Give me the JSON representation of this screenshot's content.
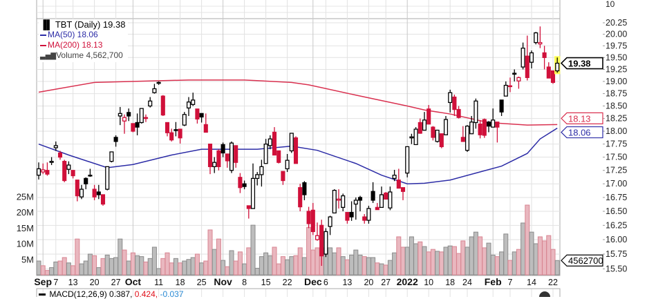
{
  "legend": {
    "title": "TBT (Daily) 19.38",
    "ma50": "MA(50) 18.06",
    "ma200": "MA(200) 18.13",
    "volume": "Volume 4,562,700"
  },
  "macd": {
    "label": "MACD(12,26,9) 0.387,",
    "signal": "0.424,",
    "hist": "-0.037"
  },
  "upper_panel_label": "10",
  "tags": {
    "price": "19.38",
    "ma50": "18.06",
    "ma200": "18.13",
    "volume": "4562700"
  },
  "colors": {
    "up": "#000000",
    "down": "#d0103a",
    "ma50": "#2b2ba6",
    "ma200": "#d9304f",
    "highlight": "#ffff55",
    "vol_down_fill": "#e9b7bf",
    "vol_down_stroke": "#d88592",
    "vol_up_fill": "#bdbdbd",
    "vol_up_stroke": "#8a8a8a"
  },
  "chart_data": {
    "type": "candlestick",
    "title": "TBT (Daily)",
    "price_axis": {
      "labels": [
        "20.25",
        "20.00",
        "19.75",
        "19.50",
        "19.25",
        "19.00",
        "18.75",
        "18.50",
        "18.25",
        "18.00",
        "17.75",
        "17.50",
        "17.25",
        "17.00",
        "16.75",
        "16.50",
        "16.25",
        "16.00",
        "15.75",
        "15.50"
      ],
      "range": [
        15.5,
        20.25
      ],
      "scale": "log"
    },
    "volume_axis": {
      "labels": [
        {
          "v": 25,
          "t": "25M"
        },
        {
          "v": 20,
          "t": "20M"
        },
        {
          "v": 15,
          "t": "15M"
        },
        {
          "v": 10,
          "t": "10M"
        },
        {
          "v": 5,
          "t": "5M"
        }
      ]
    },
    "x_ticks": [
      {
        "label": "Sep",
        "i": 1,
        "bold": true
      },
      {
        "label": "7",
        "i": 4
      },
      {
        "label": "13",
        "i": 8
      },
      {
        "label": "20",
        "i": 13
      },
      {
        "label": "27",
        "i": 18
      },
      {
        "label": "Oct",
        "i": 22,
        "bold": true
      },
      {
        "label": "11",
        "i": 28
      },
      {
        "label": "18",
        "i": 33
      },
      {
        "label": "25",
        "i": 38
      },
      {
        "label": "Nov",
        "i": 43,
        "bold": true
      },
      {
        "label": "8",
        "i": 48
      },
      {
        "label": "15",
        "i": 53
      },
      {
        "label": "22",
        "i": 58
      },
      {
        "label": "Dec",
        "i": 64,
        "bold": true
      },
      {
        "label": "6",
        "i": 67
      },
      {
        "label": "13",
        "i": 72
      },
      {
        "label": "20",
        "i": 77
      },
      {
        "label": "27",
        "i": 81
      },
      {
        "label": "2022",
        "i": 86,
        "bold": true
      },
      {
        "label": "10",
        "i": 91
      },
      {
        "label": "18",
        "i": 96
      },
      {
        "label": "24",
        "i": 100
      },
      {
        "label": "Feb",
        "i": 106,
        "bold": true
      },
      {
        "label": "7",
        "i": 110
      },
      {
        "label": "14",
        "i": 115
      },
      {
        "label": "22",
        "i": 120
      }
    ],
    "ohlc": [
      [
        17.16,
        17.4,
        17.08,
        17.28
      ],
      [
        17.22,
        17.38,
        17.18,
        17.26
      ],
      [
        17.25,
        17.4,
        17.15,
        17.18
      ],
      [
        17.4,
        17.5,
        17.35,
        17.42
      ],
      [
        17.68,
        17.8,
        17.62,
        17.72
      ],
      [
        17.58,
        17.62,
        17.45,
        17.5
      ],
      [
        17.42,
        17.45,
        17.03,
        17.06
      ],
      [
        17.27,
        17.42,
        17.18,
        17.35
      ],
      [
        17.25,
        17.25,
        17.1,
        17.15
      ],
      [
        17.07,
        17.07,
        16.68,
        16.78
      ],
      [
        16.76,
        16.98,
        16.72,
        16.9
      ],
      [
        17.1,
        17.12,
        16.9,
        17.0
      ],
      [
        17.15,
        17.28,
        17.13,
        17.16
      ],
      [
        16.9,
        16.98,
        16.7,
        16.76
      ],
      [
        16.85,
        16.98,
        16.72,
        16.8
      ],
      [
        16.8,
        16.8,
        16.6,
        16.63
      ],
      [
        16.9,
        17.32,
        16.88,
        17.32
      ],
      [
        17.42,
        17.6,
        17.4,
        17.6
      ],
      [
        17.88,
        17.92,
        17.7,
        17.8
      ],
      [
        18.3,
        18.48,
        18.12,
        18.35
      ],
      [
        18.2,
        18.33,
        17.95,
        18.27
      ],
      [
        18.37,
        18.45,
        18.2,
        18.3
      ],
      [
        18.15,
        18.15,
        17.98,
        18.0
      ],
      [
        18.17,
        18.35,
        17.92,
        18.08
      ],
      [
        18.17,
        18.45,
        18.15,
        18.45
      ],
      [
        18.27,
        18.33,
        18.18,
        18.25
      ],
      [
        18.5,
        18.68,
        18.47,
        18.6
      ],
      [
        18.77,
        18.95,
        18.75,
        18.85
      ],
      [
        18.96,
        19.0,
        18.93,
        18.98
      ],
      [
        18.7,
        18.72,
        18.3,
        18.32
      ],
      [
        18.17,
        18.17,
        17.9,
        17.97
      ],
      [
        17.97,
        18.05,
        17.8,
        17.83
      ],
      [
        18.02,
        18.18,
        17.9,
        18.03
      ],
      [
        18.04,
        18.04,
        17.76,
        17.87
      ],
      [
        18.12,
        18.38,
        18.1,
        18.33
      ],
      [
        18.46,
        18.68,
        18.3,
        18.58
      ],
      [
        18.53,
        18.77,
        18.5,
        18.62
      ],
      [
        18.44,
        18.44,
        18.15,
        18.24
      ],
      [
        18.35,
        18.35,
        18.17,
        18.28
      ],
      [
        18.13,
        18.35,
        17.98,
        17.98
      ],
      [
        17.75,
        17.75,
        17.18,
        17.32
      ],
      [
        17.32,
        17.5,
        17.2,
        17.4
      ],
      [
        17.62,
        17.65,
        17.25,
        17.32
      ],
      [
        17.74,
        17.78,
        17.5,
        17.58
      ],
      [
        17.56,
        17.56,
        17.3,
        17.43
      ],
      [
        17.25,
        17.8,
        17.2,
        17.77
      ],
      [
        17.72,
        17.72,
        17.3,
        17.4
      ],
      [
        17.12,
        17.2,
        16.83,
        16.93
      ],
      [
        17.0,
        17.06,
        16.9,
        16.95
      ],
      [
        16.6,
        16.6,
        16.37,
        16.55
      ],
      [
        16.55,
        17.38,
        16.55,
        17.1
      ],
      [
        17.1,
        17.22,
        16.97,
        17.17
      ],
      [
        17.17,
        17.45,
        16.95,
        17.32
      ],
      [
        17.38,
        17.85,
        17.38,
        17.75
      ],
      [
        17.72,
        17.92,
        17.65,
        17.85
      ],
      [
        17.98,
        18.08,
        17.54,
        17.54
      ],
      [
        17.62,
        17.62,
        17.38,
        17.4
      ],
      [
        17.23,
        17.23,
        16.98,
        17.06
      ],
      [
        17.28,
        17.56,
        17.22,
        17.44
      ],
      [
        17.62,
        17.96,
        17.58,
        17.96
      ],
      [
        17.87,
        17.9,
        17.38,
        17.38
      ],
      [
        16.93,
        17.0,
        16.5,
        16.58
      ],
      [
        17.02,
        17.05,
        16.7,
        16.8
      ],
      [
        16.5,
        16.58,
        16.2,
        16.28
      ],
      [
        16.52,
        16.65,
        16.08,
        16.14
      ],
      [
        16.0,
        16.3,
        15.98,
        16.07
      ],
      [
        16.25,
        16.35,
        15.55,
        15.72
      ],
      [
        15.75,
        16.2,
        15.7,
        16.14
      ],
      [
        16.23,
        16.42,
        16.08,
        16.4
      ],
      [
        16.47,
        16.9,
        16.47,
        16.88
      ],
      [
        16.7,
        16.9,
        16.55,
        16.72
      ],
      [
        16.57,
        16.82,
        16.5,
        16.78
      ],
      [
        16.48,
        16.48,
        16.28,
        16.34
      ],
      [
        16.48,
        16.68,
        16.33,
        16.4
      ],
      [
        16.63,
        16.75,
        16.35,
        16.7
      ],
      [
        16.75,
        16.78,
        16.5,
        16.7
      ],
      [
        16.4,
        16.45,
        16.28,
        16.34
      ],
      [
        16.34,
        16.6,
        16.28,
        16.55
      ],
      [
        16.86,
        17.03,
        16.65,
        16.7
      ],
      [
        16.57,
        16.65,
        16.53,
        16.53
      ],
      [
        16.57,
        16.95,
        16.57,
        16.8
      ],
      [
        16.83,
        16.85,
        16.72,
        16.72
      ],
      [
        16.56,
        16.95,
        16.52,
        16.85
      ],
      [
        17.1,
        17.26,
        17.05,
        17.16
      ],
      [
        17.07,
        17.28,
        16.92,
        16.92
      ],
      [
        16.93,
        16.93,
        16.7,
        16.86
      ],
      [
        17.2,
        17.7,
        17.12,
        17.7
      ],
      [
        17.87,
        17.95,
        17.75,
        17.89
      ],
      [
        17.74,
        18.08,
        17.74,
        18.04
      ],
      [
        18.17,
        18.25,
        17.95,
        17.96
      ],
      [
        18.02,
        18.38,
        18.02,
        18.22
      ],
      [
        18.44,
        18.52,
        18.14,
        18.14
      ],
      [
        18.08,
        18.1,
        17.82,
        17.88
      ],
      [
        17.8,
        18.02,
        17.78,
        18.02
      ],
      [
        17.95,
        17.95,
        17.67,
        17.7
      ],
      [
        17.93,
        18.3,
        17.93,
        18.23
      ],
      [
        18.57,
        18.83,
        18.37,
        18.77
      ],
      [
        18.68,
        18.73,
        18.3,
        18.43
      ],
      [
        18.43,
        18.5,
        18.25,
        18.27
      ],
      [
        17.88,
        18.1,
        17.8,
        17.8
      ],
      [
        17.63,
        18.12,
        17.6,
        18.1
      ],
      [
        17.95,
        18.3,
        17.95,
        18.18
      ],
      [
        18.17,
        18.65,
        18.05,
        18.6
      ],
      [
        18.14,
        18.22,
        17.86,
        17.93
      ],
      [
        18.23,
        18.25,
        17.87,
        17.92
      ],
      [
        18.18,
        18.2,
        17.98,
        18.1
      ],
      [
        18.08,
        18.45,
        18.08,
        18.22
      ],
      [
        18.18,
        18.18,
        17.78,
        18.08
      ],
      [
        18.62,
        18.62,
        18.3,
        18.38
      ],
      [
        18.7,
        19.0,
        18.7,
        18.92
      ],
      [
        18.9,
        19.08,
        18.78,
        18.91
      ],
      [
        19.15,
        19.25,
        19.0,
        19.17
      ],
      [
        19.01,
        19.1,
        18.85,
        19.08
      ],
      [
        19.3,
        19.82,
        19.25,
        19.7
      ],
      [
        19.53,
        19.97,
        19.02,
        19.08
      ],
      [
        19.4,
        19.65,
        19.27,
        19.6
      ],
      [
        19.82,
        20.05,
        19.78,
        20.03
      ],
      [
        19.79,
        20.17,
        19.7,
        19.82
      ],
      [
        19.6,
        19.75,
        19.25,
        19.5
      ],
      [
        19.3,
        19.4,
        19.07,
        19.07
      ],
      [
        19.22,
        19.22,
        18.95,
        18.98
      ],
      [
        19.22,
        19.5,
        19.18,
        19.38
      ]
    ],
    "volume_millions": [
      4.4,
      2.9,
      1.4,
      2.3,
      4.1,
      4.4,
      5.5,
      3.8,
      2.9,
      11.4,
      3.5,
      4.4,
      6.6,
      6.1,
      2.3,
      5.2,
      6.3,
      5.2,
      5.5,
      11.4,
      7.9,
      4.4,
      7.0,
      6.1,
      5.8,
      4.1,
      5.2,
      8.8,
      2.0,
      5.2,
      7.0,
      3.8,
      5.2,
      3.8,
      4.4,
      4.9,
      5.5,
      6.6,
      3.8,
      4.4,
      14.3,
      8.1,
      11.4,
      4.6,
      2.6,
      7.7,
      4.4,
      7.3,
      3.5,
      8.6,
      15.8,
      2.1,
      5.8,
      7.0,
      6.1,
      8.8,
      3.5,
      5.8,
      4.8,
      5.8,
      6.1,
      8.6,
      5.5,
      15.1,
      7.9,
      8.6,
      8.6,
      8.6,
      8.6,
      7.0,
      8.6,
      5.8,
      4.8,
      6.3,
      7.9,
      6.3,
      5.8,
      5.5,
      5.5,
      3.8,
      3.5,
      3.1,
      4.6,
      7.0,
      12.1,
      8.8,
      8.8,
      12.1,
      9.9,
      10.5,
      9.0,
      7.3,
      8.1,
      7.5,
      7.3,
      8.8,
      9.2,
      9.0,
      6.8,
      10.8,
      8.8,
      12.1,
      13.6,
      12.1,
      8.6,
      10.1,
      6.3,
      5.8,
      7.3,
      13.0,
      4.6,
      7.3,
      8.1,
      16.5,
      22.2,
      13.6,
      9.9,
      12.1,
      10.8,
      12.5,
      8.1,
      4.5627
    ],
    "ma50": [
      [
        0,
        17.75
      ],
      [
        7,
        17.54
      ],
      [
        16,
        17.3
      ],
      [
        22,
        17.36
      ],
      [
        31,
        17.54
      ],
      [
        38,
        17.65
      ],
      [
        51,
        17.65
      ],
      [
        59,
        17.71
      ],
      [
        65,
        17.63
      ],
      [
        74,
        17.38
      ],
      [
        80,
        17.16
      ],
      [
        86,
        17.0
      ],
      [
        90,
        17.01
      ],
      [
        96,
        17.07
      ],
      [
        102,
        17.2
      ],
      [
        108,
        17.33
      ],
      [
        114,
        17.57
      ],
      [
        117,
        17.85
      ],
      [
        121,
        18.06
      ]
    ],
    "ma200": [
      [
        0,
        18.78
      ],
      [
        13,
        18.98
      ],
      [
        35,
        19.03
      ],
      [
        48,
        19.03
      ],
      [
        59,
        18.98
      ],
      [
        63,
        18.93
      ],
      [
        74,
        18.72
      ],
      [
        86,
        18.5
      ],
      [
        90,
        18.42
      ],
      [
        96,
        18.34
      ],
      [
        105,
        18.17
      ],
      [
        114,
        18.12
      ],
      [
        121,
        18.13
      ]
    ],
    "highlight_last": true
  }
}
